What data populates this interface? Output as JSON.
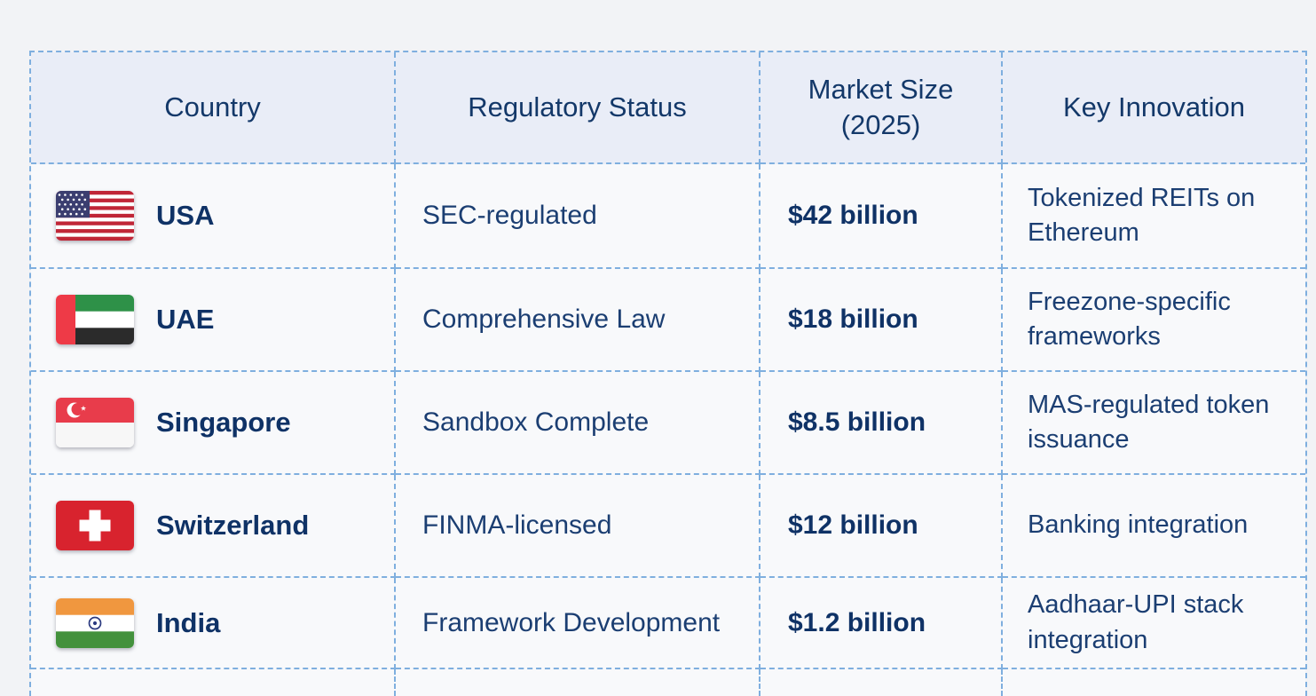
{
  "page": {
    "background_color": "#f2f3f6",
    "border_color": "#7fafdf",
    "header_bg_color": "#e9edf7",
    "cell_bg_color": "#f8f9fb",
    "text_color": "#1b3e72",
    "bold_text_color": "#0f3266"
  },
  "table": {
    "headers": [
      "Country",
      "Regulatory Status",
      "Market Size (2025)",
      "Key Innovation"
    ],
    "rows": [
      {
        "flag_icon": "usa-flag-icon",
        "country": "USA",
        "regulatory_status": "SEC-regulated",
        "market_size": "$42 billion",
        "key_innovation": "Tokenized REITs on Ethereum"
      },
      {
        "flag_icon": "uae-flag-icon",
        "country": "UAE",
        "regulatory_status": "Comprehensive Law",
        "market_size": "$18 billion",
        "key_innovation": "Freezone-specific frameworks"
      },
      {
        "flag_icon": "singapore-flag-icon",
        "country": "Singapore",
        "regulatory_status": "Sandbox Complete",
        "market_size": "$8.5 billion",
        "key_innovation": "MAS-regulated token issuance"
      },
      {
        "flag_icon": "switzerland-flag-icon",
        "country": "Switzerland",
        "regulatory_status": "FINMA-licensed",
        "market_size": "$12 billion",
        "key_innovation": "Banking integration"
      },
      {
        "flag_icon": "india-flag-icon",
        "country": "India",
        "regulatory_status": "Framework Development",
        "market_size": "$1.2 billion",
        "key_innovation": "Aadhaar-UPI stack integration"
      }
    ]
  },
  "chart_data": {
    "type": "table",
    "title": "",
    "columns": [
      "Country",
      "Regulatory Status",
      "Market Size (2025)",
      "Key Innovation"
    ],
    "rows": [
      [
        "USA",
        "SEC-regulated",
        "$42 billion",
        "Tokenized REITs on Ethereum"
      ],
      [
        "UAE",
        "Comprehensive Law",
        "$18 billion",
        "Freezone-specific frameworks"
      ],
      [
        "Singapore",
        "Sandbox Complete",
        "$8.5 billion",
        "MAS-regulated token issuance"
      ],
      [
        "Switzerland",
        "FINMA-licensed",
        "$12 billion",
        "Banking integration"
      ],
      [
        "India",
        "Framework Development",
        "$1.2 billion",
        "Aadhaar-UPI stack integration"
      ]
    ],
    "market_size_values_billion_usd": [
      42,
      18,
      8.5,
      12,
      1.2
    ]
  }
}
